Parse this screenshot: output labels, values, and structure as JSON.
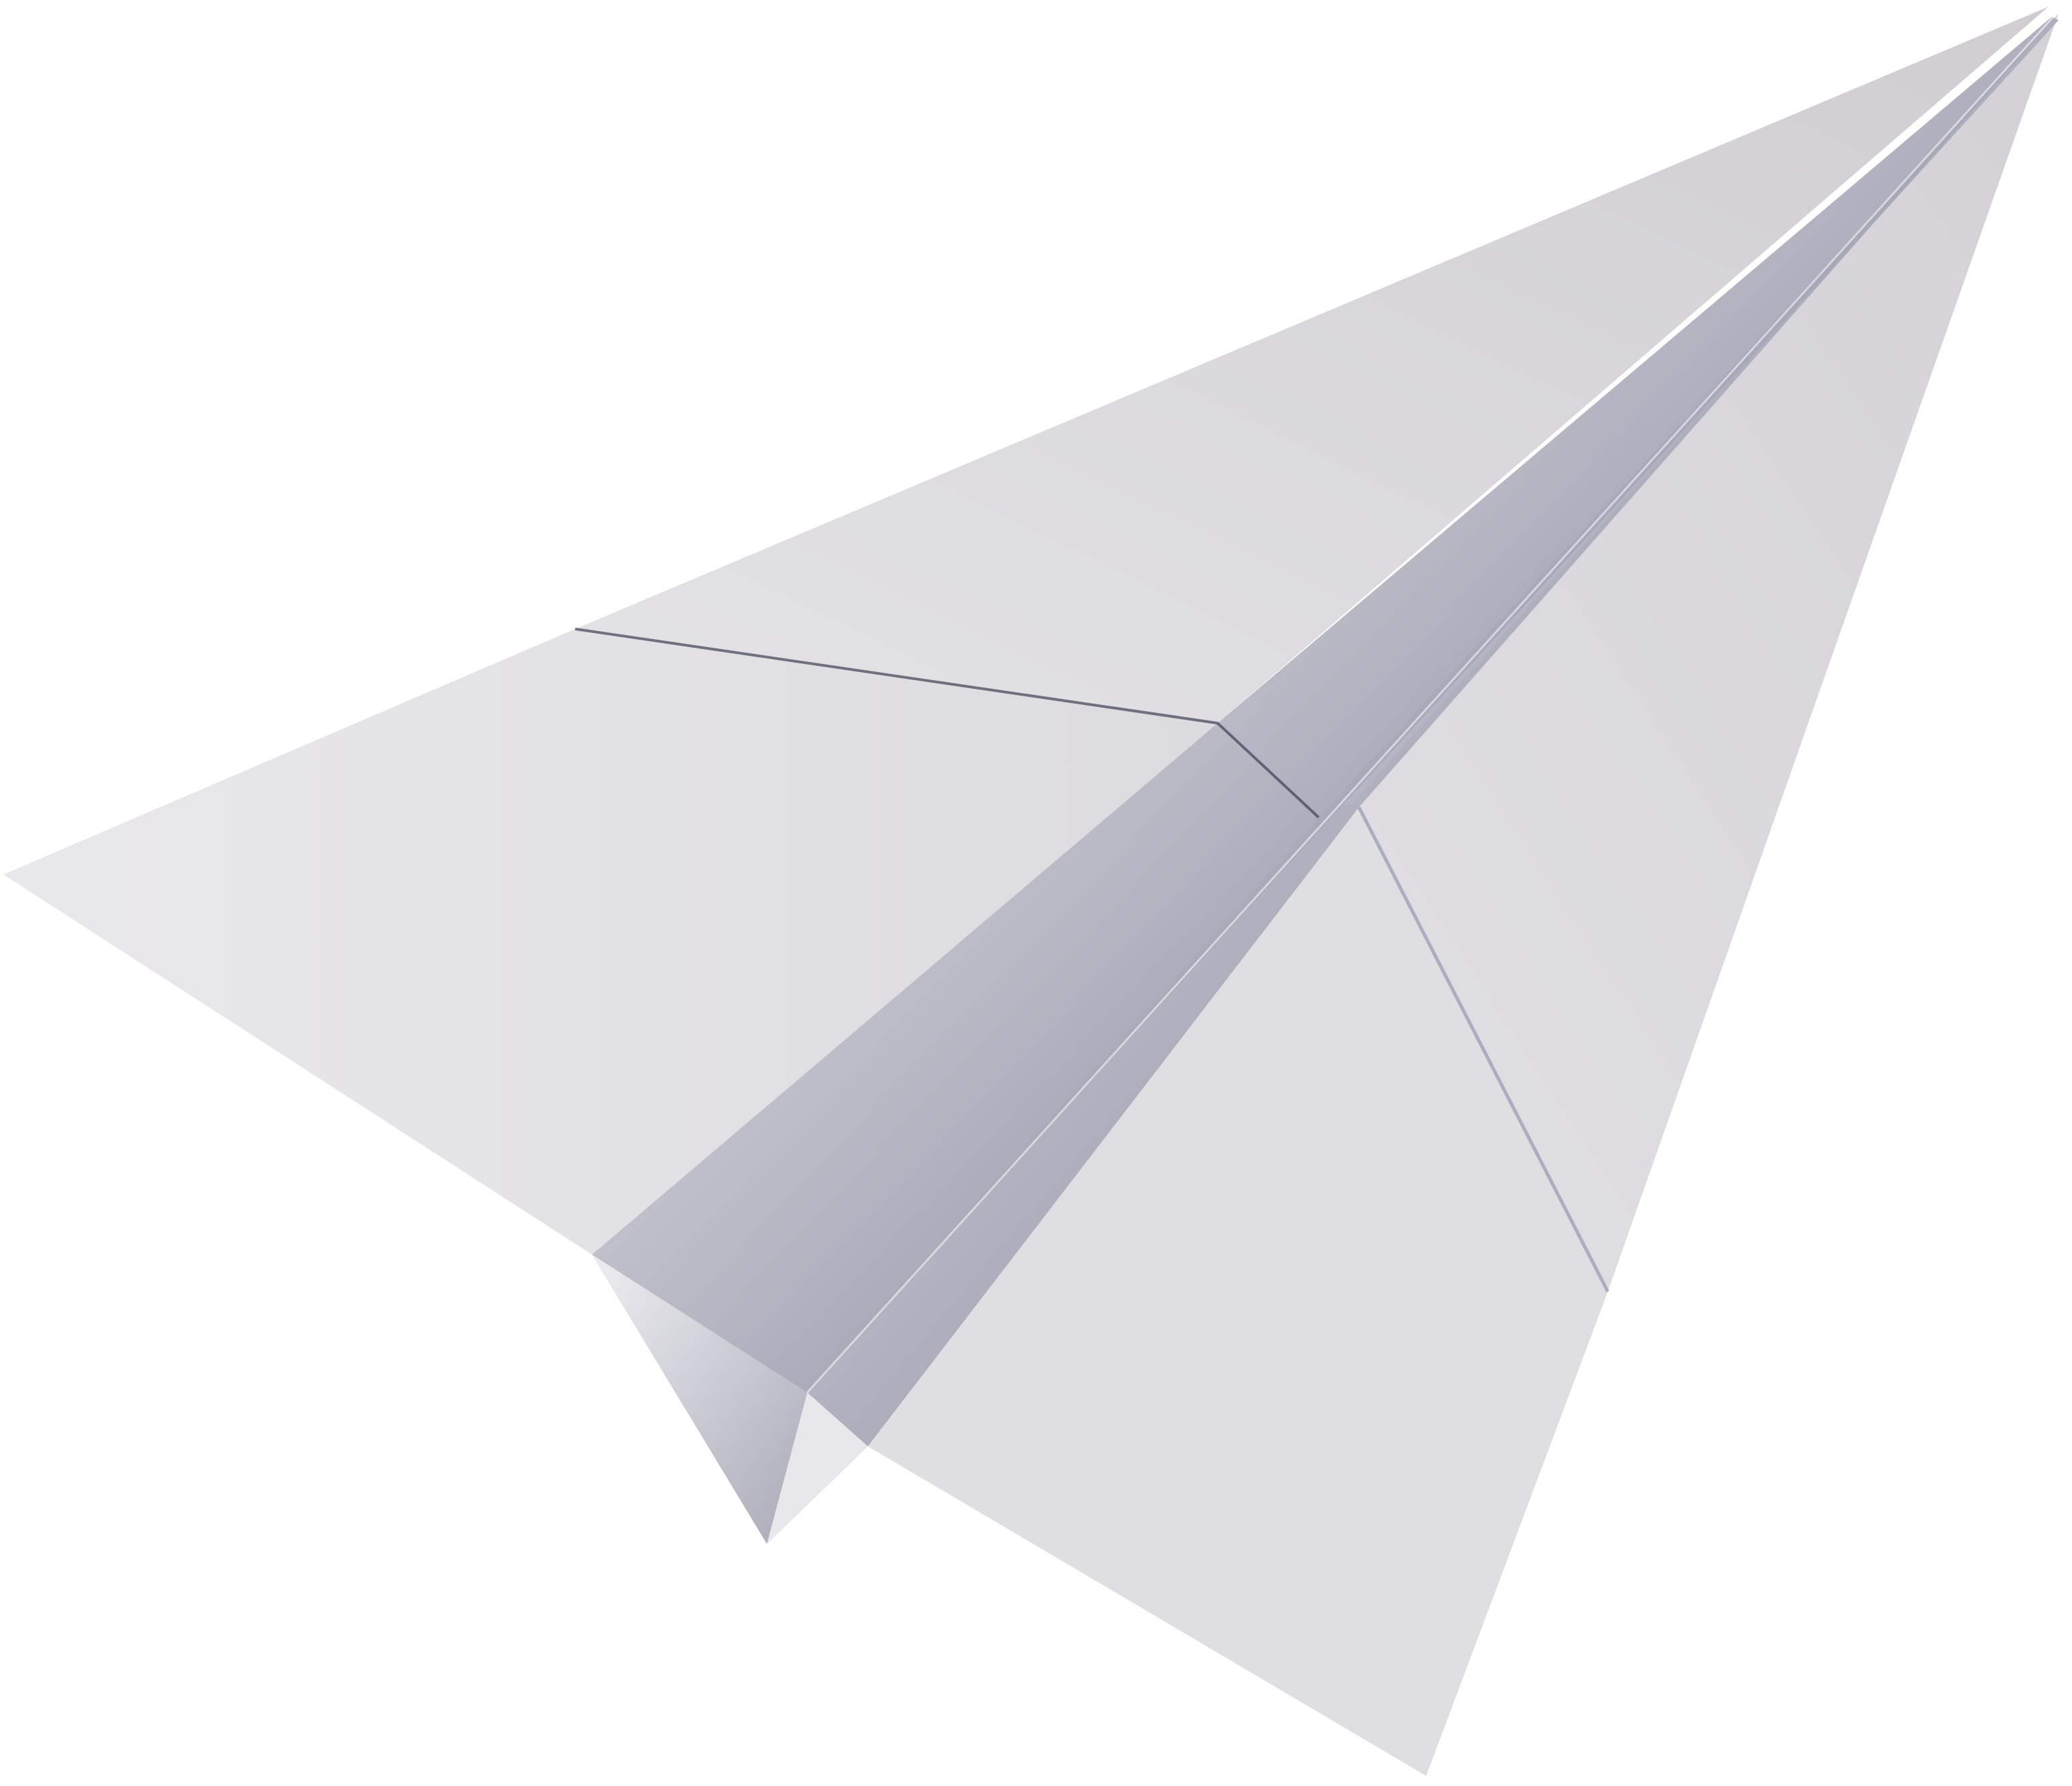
{
  "scene": {
    "subject_icon": "paper-airplane-icon",
    "background_color": "#ffffff",
    "colors": {
      "paper_light": "#e6e5e8",
      "paper_mid": "#d8d7da",
      "paper_far": "#cfcdd1",
      "crease_highlight": "#fbfbfd",
      "crease_shadow": "#4b4c63",
      "fold_line": "#2e2f45"
    }
  }
}
